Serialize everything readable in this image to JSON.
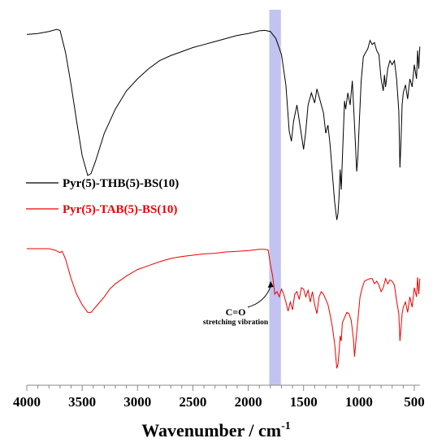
{
  "chart_data": {
    "type": "line",
    "xlabel_main": "Wavenumber / cm",
    "xlabel_sup": "-1",
    "ylabel": "",
    "xlim": [
      4000,
      400
    ],
    "x_reversed": true,
    "y_ticks_visible": false,
    "grid": false,
    "xticks": [
      "4000",
      "3500",
      "3000",
      "2500",
      "2000",
      "1500",
      "1000",
      "500"
    ],
    "xtick_values": [
      4000,
      3500,
      3000,
      2500,
      2000,
      1500,
      1000,
      500
    ],
    "highlight_band": {
      "x_from": 1810,
      "x_to": 1705,
      "color": "#b8b8ee"
    },
    "legend_placement": "left-middle",
    "annotation": {
      "line1": "C=O",
      "line2": "stretching vibration",
      "target_x": 1790
    },
    "series": [
      {
        "name": "Pyr(5)-THB(5)-BS(10)",
        "color": "#000000",
        "ylim": [
          0,
          100
        ],
        "points": [
          [
            4000,
            95
          ],
          [
            3900,
            95.5
          ],
          [
            3800,
            96.5
          ],
          [
            3730,
            97.5
          ],
          [
            3700,
            97
          ],
          [
            3650,
            86
          ],
          [
            3600,
            70
          ],
          [
            3550,
            52
          ],
          [
            3500,
            35
          ],
          [
            3450,
            25
          ],
          [
            3420,
            26
          ],
          [
            3380,
            32
          ],
          [
            3300,
            46
          ],
          [
            3200,
            58
          ],
          [
            3100,
            67
          ],
          [
            3000,
            73
          ],
          [
            2900,
            78
          ],
          [
            2800,
            82
          ],
          [
            2700,
            84.5
          ],
          [
            2600,
            86.5
          ],
          [
            2500,
            88.5
          ],
          [
            2400,
            90
          ],
          [
            2300,
            91.5
          ],
          [
            2200,
            93
          ],
          [
            2100,
            94.5
          ],
          [
            2000,
            95.5
          ],
          [
            1900,
            96.8
          ],
          [
            1850,
            97
          ],
          [
            1800,
            96.5
          ],
          [
            1750,
            93
          ],
          [
            1700,
            85
          ],
          [
            1660,
            70
          ],
          [
            1630,
            47
          ],
          [
            1610,
            42
          ],
          [
            1590,
            52
          ],
          [
            1560,
            60
          ],
          [
            1530,
            49
          ],
          [
            1500,
            38
          ],
          [
            1480,
            47
          ],
          [
            1460,
            60
          ],
          [
            1430,
            66
          ],
          [
            1400,
            61
          ],
          [
            1380,
            68
          ],
          [
            1350,
            62
          ],
          [
            1320,
            56
          ],
          [
            1300,
            46
          ],
          [
            1280,
            50
          ],
          [
            1260,
            40
          ],
          [
            1240,
            26
          ],
          [
            1220,
            12
          ],
          [
            1200,
            3
          ],
          [
            1190,
            6
          ],
          [
            1180,
            14
          ],
          [
            1170,
            28
          ],
          [
            1160,
            18
          ],
          [
            1150,
            33
          ],
          [
            1130,
            62
          ],
          [
            1120,
            58
          ],
          [
            1100,
            66
          ],
          [
            1080,
            60
          ],
          [
            1060,
            72
          ],
          [
            1040,
            50
          ],
          [
            1020,
            27
          ],
          [
            1010,
            34
          ],
          [
            1000,
            48
          ],
          [
            980,
            72
          ],
          [
            960,
            84
          ],
          [
            940,
            86
          ],
          [
            920,
            88
          ],
          [
            900,
            92
          ],
          [
            880,
            90
          ],
          [
            860,
            91
          ],
          [
            840,
            87
          ],
          [
            820,
            85
          ],
          [
            800,
            73
          ],
          [
            780,
            67
          ],
          [
            770,
            75
          ],
          [
            760,
            69
          ],
          [
            740,
            78
          ],
          [
            720,
            82
          ],
          [
            700,
            80
          ],
          [
            680,
            82
          ],
          [
            660,
            73
          ],
          [
            640,
            57
          ],
          [
            630,
            29
          ],
          [
            620,
            42
          ],
          [
            610,
            60
          ],
          [
            600,
            66
          ],
          [
            580,
            70
          ],
          [
            560,
            63
          ],
          [
            540,
            73
          ],
          [
            520,
            69
          ],
          [
            500,
            80
          ],
          [
            480,
            73
          ],
          [
            470,
            87
          ],
          [
            460,
            78
          ],
          [
            450,
            89
          ]
        ]
      },
      {
        "name": "Pyr(5)-TAB(5)-BS(10)",
        "color": "#ee0000",
        "ylim": [
          0,
          100
        ],
        "points": [
          [
            4000,
            95
          ],
          [
            3900,
            95
          ],
          [
            3800,
            95
          ],
          [
            3750,
            94
          ],
          [
            3700,
            92
          ],
          [
            3680,
            93
          ],
          [
            3650,
            87
          ],
          [
            3600,
            72
          ],
          [
            3550,
            60
          ],
          [
            3500,
            52
          ],
          [
            3450,
            46
          ],
          [
            3420,
            46
          ],
          [
            3380,
            50
          ],
          [
            3300,
            58
          ],
          [
            3250,
            64
          ],
          [
            3200,
            68
          ],
          [
            3100,
            74
          ],
          [
            3000,
            79
          ],
          [
            2900,
            82
          ],
          [
            2800,
            85
          ],
          [
            2700,
            87.5
          ],
          [
            2600,
            89
          ],
          [
            2500,
            90
          ],
          [
            2400,
            91
          ],
          [
            2300,
            91.5
          ],
          [
            2200,
            92.5
          ],
          [
            2100,
            93
          ],
          [
            2000,
            93.5
          ],
          [
            1900,
            94.5
          ],
          [
            1850,
            94.5
          ],
          [
            1820,
            94
          ],
          [
            1800,
            83
          ],
          [
            1780,
            74
          ],
          [
            1760,
            60
          ],
          [
            1740,
            62
          ],
          [
            1720,
            58
          ],
          [
            1700,
            64
          ],
          [
            1680,
            60
          ],
          [
            1660,
            54
          ],
          [
            1640,
            47
          ],
          [
            1620,
            54
          ],
          [
            1600,
            48
          ],
          [
            1580,
            60
          ],
          [
            1560,
            62
          ],
          [
            1540,
            56
          ],
          [
            1520,
            65
          ],
          [
            1500,
            64
          ],
          [
            1480,
            58
          ],
          [
            1460,
            63
          ],
          [
            1440,
            54
          ],
          [
            1420,
            62
          ],
          [
            1400,
            52
          ],
          [
            1380,
            45
          ],
          [
            1360,
            58
          ],
          [
            1340,
            62
          ],
          [
            1320,
            60
          ],
          [
            1300,
            56
          ],
          [
            1280,
            52
          ],
          [
            1260,
            44
          ],
          [
            1240,
            35
          ],
          [
            1220,
            22
          ],
          [
            1200,
            3
          ],
          [
            1190,
            6
          ],
          [
            1180,
            15
          ],
          [
            1170,
            28
          ],
          [
            1160,
            24
          ],
          [
            1150,
            38
          ],
          [
            1130,
            42
          ],
          [
            1110,
            46
          ],
          [
            1090,
            45
          ],
          [
            1070,
            40
          ],
          [
            1050,
            26
          ],
          [
            1040,
            12
          ],
          [
            1030,
            22
          ],
          [
            1010,
            40
          ],
          [
            990,
            58
          ],
          [
            970,
            65
          ],
          [
            950,
            70
          ],
          [
            930,
            71
          ],
          [
            900,
            72
          ],
          [
            880,
            72
          ],
          [
            860,
            68
          ],
          [
            840,
            70
          ],
          [
            820,
            67
          ],
          [
            800,
            62
          ],
          [
            780,
            65
          ],
          [
            760,
            72
          ],
          [
            740,
            68
          ],
          [
            720,
            71
          ],
          [
            700,
            70
          ],
          [
            680,
            67
          ],
          [
            660,
            55
          ],
          [
            640,
            45
          ],
          [
            630,
            24
          ],
          [
            620,
            34
          ],
          [
            610,
            45
          ],
          [
            600,
            50
          ],
          [
            580,
            54
          ],
          [
            560,
            46
          ],
          [
            540,
            58
          ],
          [
            520,
            50
          ],
          [
            500,
            65
          ],
          [
            480,
            58
          ],
          [
            470,
            73
          ],
          [
            460,
            60
          ],
          [
            450,
            72
          ]
        ]
      }
    ]
  }
}
